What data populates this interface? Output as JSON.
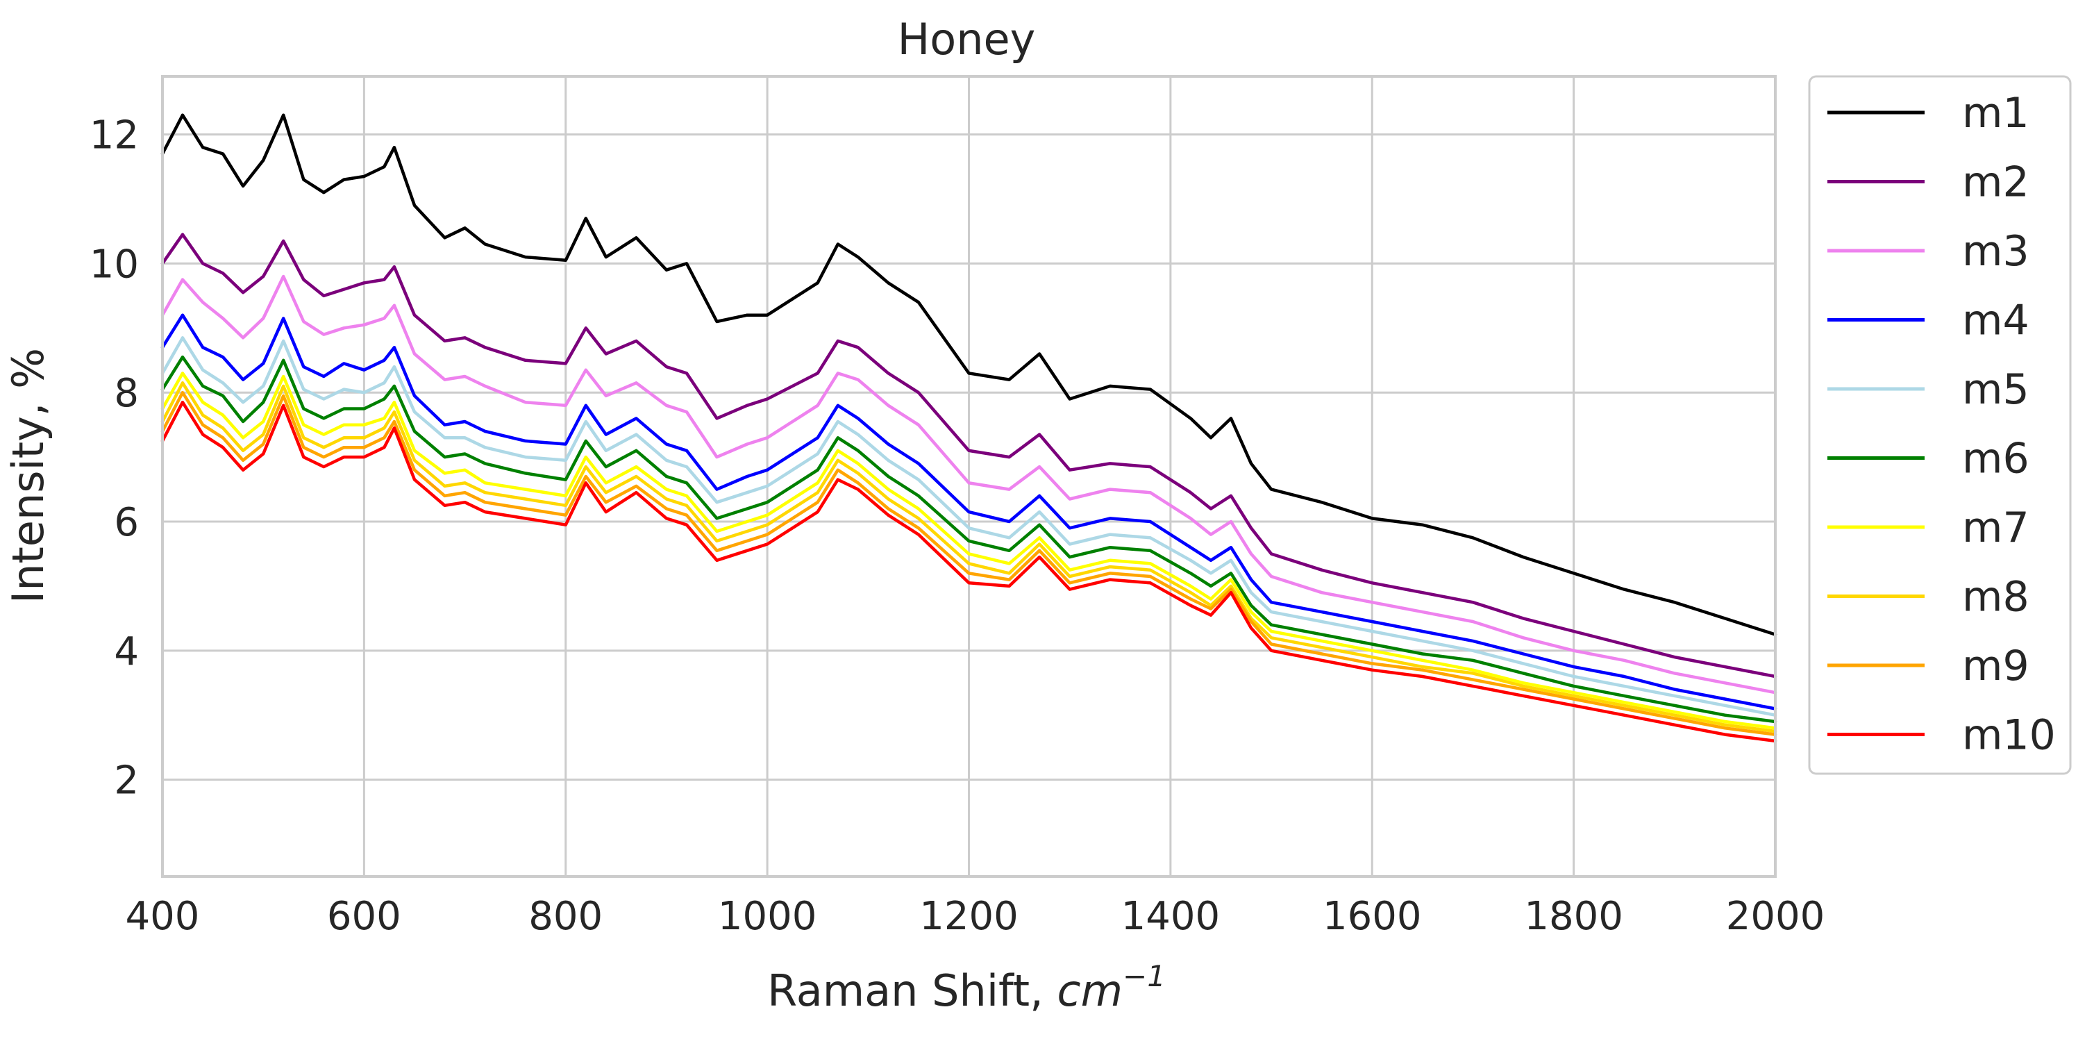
{
  "chart_data": {
    "type": "line",
    "title": "Honey",
    "xlabel": "Raman Shift, cm⁻¹",
    "xlabel_text": "Raman Shift, ",
    "xlabel_unit": "cm",
    "xlabel_exp": "−1",
    "ylabel": "Intensity, %",
    "xlim": [
      400,
      2000
    ],
    "ylim": [
      0.5,
      12.9
    ],
    "xticks": [
      400,
      600,
      800,
      1000,
      1200,
      1400,
      1600,
      1800,
      2000
    ],
    "yticks": [
      2,
      4,
      6,
      8,
      10,
      12
    ],
    "grid": true,
    "legend_position": "outside-right",
    "x": [
      400,
      420,
      440,
      460,
      480,
      500,
      520,
      540,
      560,
      580,
      600,
      620,
      630,
      650,
      680,
      700,
      720,
      760,
      800,
      820,
      840,
      870,
      900,
      920,
      950,
      980,
      1000,
      1050,
      1070,
      1090,
      1120,
      1150,
      1200,
      1240,
      1270,
      1300,
      1340,
      1380,
      1420,
      1440,
      1460,
      1480,
      1500,
      1550,
      1600,
      1650,
      1700,
      1750,
      1800,
      1850,
      1900,
      1950,
      2000
    ],
    "series": [
      {
        "name": "m1",
        "color": "#000000",
        "values": [
          11.7,
          12.3,
          11.8,
          11.7,
          11.2,
          11.6,
          12.3,
          11.3,
          11.1,
          11.3,
          11.35,
          11.5,
          11.8,
          10.9,
          10.4,
          10.55,
          10.3,
          10.1,
          10.05,
          10.7,
          10.1,
          10.4,
          9.9,
          10.0,
          9.1,
          9.2,
          9.2,
          9.7,
          10.3,
          10.1,
          9.7,
          9.4,
          8.3,
          8.2,
          8.6,
          7.9,
          8.1,
          8.05,
          7.6,
          7.3,
          7.6,
          6.9,
          6.5,
          6.3,
          6.05,
          5.95,
          5.75,
          5.45,
          5.2,
          4.95,
          4.75,
          4.5,
          4.25
        ]
      },
      {
        "name": "m2",
        "color": "#7b007b",
        "values": [
          10.0,
          10.45,
          10.0,
          9.85,
          9.55,
          9.8,
          10.35,
          9.75,
          9.5,
          9.6,
          9.7,
          9.75,
          9.95,
          9.2,
          8.8,
          8.85,
          8.7,
          8.5,
          8.45,
          9.0,
          8.6,
          8.8,
          8.4,
          8.3,
          7.6,
          7.8,
          7.9,
          8.3,
          8.8,
          8.7,
          8.3,
          8.0,
          7.1,
          7.0,
          7.35,
          6.8,
          6.9,
          6.85,
          6.45,
          6.2,
          6.4,
          5.9,
          5.5,
          5.25,
          5.05,
          4.9,
          4.75,
          4.5,
          4.3,
          4.1,
          3.9,
          3.75,
          3.6
        ]
      },
      {
        "name": "m3",
        "color": "#ee82ee",
        "values": [
          9.2,
          9.75,
          9.4,
          9.15,
          8.85,
          9.15,
          9.8,
          9.1,
          8.9,
          9.0,
          9.05,
          9.15,
          9.35,
          8.6,
          8.2,
          8.25,
          8.1,
          7.85,
          7.8,
          8.35,
          7.95,
          8.15,
          7.8,
          7.7,
          7.0,
          7.2,
          7.3,
          7.8,
          8.3,
          8.2,
          7.8,
          7.5,
          6.6,
          6.5,
          6.85,
          6.35,
          6.5,
          6.45,
          6.05,
          5.8,
          6.0,
          5.5,
          5.15,
          4.9,
          4.75,
          4.6,
          4.45,
          4.2,
          4.0,
          3.85,
          3.65,
          3.5,
          3.35
        ]
      },
      {
        "name": "m4",
        "color": "#0000ff",
        "values": [
          8.7,
          9.2,
          8.7,
          8.55,
          8.2,
          8.45,
          9.15,
          8.4,
          8.25,
          8.45,
          8.35,
          8.5,
          8.7,
          7.95,
          7.5,
          7.55,
          7.4,
          7.25,
          7.2,
          7.8,
          7.35,
          7.6,
          7.2,
          7.1,
          6.5,
          6.7,
          6.8,
          7.3,
          7.8,
          7.6,
          7.2,
          6.9,
          6.15,
          6.0,
          6.4,
          5.9,
          6.05,
          6.0,
          5.6,
          5.4,
          5.6,
          5.1,
          4.75,
          4.6,
          4.45,
          4.3,
          4.15,
          3.95,
          3.75,
          3.6,
          3.4,
          3.25,
          3.1
        ]
      },
      {
        "name": "m5",
        "color": "#add8e6",
        "values": [
          8.3,
          8.85,
          8.35,
          8.15,
          7.85,
          8.1,
          8.8,
          8.05,
          7.9,
          8.05,
          8.0,
          8.15,
          8.4,
          7.7,
          7.3,
          7.3,
          7.15,
          7.0,
          6.95,
          7.55,
          7.1,
          7.35,
          6.95,
          6.85,
          6.3,
          6.45,
          6.55,
          7.05,
          7.55,
          7.35,
          6.95,
          6.65,
          5.9,
          5.75,
          6.15,
          5.65,
          5.8,
          5.75,
          5.4,
          5.2,
          5.4,
          4.9,
          4.6,
          4.45,
          4.3,
          4.15,
          4.0,
          3.8,
          3.6,
          3.45,
          3.3,
          3.15,
          3.0
        ]
      },
      {
        "name": "m6",
        "color": "#008000",
        "values": [
          8.05,
          8.55,
          8.1,
          7.95,
          7.55,
          7.85,
          8.5,
          7.75,
          7.6,
          7.75,
          7.75,
          7.9,
          8.1,
          7.4,
          7.0,
          7.05,
          6.9,
          6.75,
          6.65,
          7.25,
          6.85,
          7.1,
          6.7,
          6.6,
          6.05,
          6.2,
          6.3,
          6.8,
          7.3,
          7.1,
          6.7,
          6.4,
          5.7,
          5.55,
          5.95,
          5.45,
          5.6,
          5.55,
          5.2,
          5.0,
          5.2,
          4.7,
          4.4,
          4.25,
          4.1,
          3.95,
          3.85,
          3.65,
          3.45,
          3.3,
          3.15,
          3.0,
          2.9
        ]
      },
      {
        "name": "m7",
        "color": "#ffff00",
        "values": [
          7.75,
          8.3,
          7.85,
          7.65,
          7.3,
          7.55,
          8.25,
          7.5,
          7.35,
          7.5,
          7.5,
          7.6,
          7.85,
          7.1,
          6.75,
          6.8,
          6.6,
          6.5,
          6.4,
          7.0,
          6.6,
          6.85,
          6.5,
          6.4,
          5.85,
          6.0,
          6.1,
          6.6,
          7.1,
          6.9,
          6.5,
          6.2,
          5.5,
          5.35,
          5.75,
          5.25,
          5.4,
          5.35,
          5.0,
          4.8,
          5.1,
          4.6,
          4.3,
          4.15,
          4.0,
          3.85,
          3.7,
          3.5,
          3.35,
          3.2,
          3.05,
          2.9,
          2.8
        ]
      },
      {
        "name": "m8",
        "color": "#ffd700",
        "values": [
          7.55,
          8.15,
          7.65,
          7.45,
          7.1,
          7.35,
          8.1,
          7.3,
          7.15,
          7.3,
          7.3,
          7.45,
          7.7,
          6.95,
          6.55,
          6.6,
          6.45,
          6.35,
          6.25,
          6.85,
          6.45,
          6.7,
          6.35,
          6.25,
          5.7,
          5.85,
          5.95,
          6.45,
          6.95,
          6.75,
          6.35,
          6.05,
          5.35,
          5.2,
          5.65,
          5.15,
          5.3,
          5.25,
          4.9,
          4.7,
          5.0,
          4.5,
          4.2,
          4.05,
          3.9,
          3.75,
          3.65,
          3.45,
          3.3,
          3.15,
          3.0,
          2.85,
          2.75
        ]
      },
      {
        "name": "m9",
        "color": "#ffa500",
        "values": [
          7.4,
          8.0,
          7.5,
          7.3,
          6.95,
          7.2,
          7.95,
          7.15,
          7.0,
          7.15,
          7.15,
          7.3,
          7.55,
          6.8,
          6.4,
          6.45,
          6.3,
          6.2,
          6.1,
          6.7,
          6.3,
          6.55,
          6.2,
          6.1,
          5.55,
          5.7,
          5.8,
          6.3,
          6.8,
          6.6,
          6.2,
          5.9,
          5.2,
          5.1,
          5.55,
          5.05,
          5.2,
          5.15,
          4.8,
          4.65,
          4.95,
          4.45,
          4.1,
          3.95,
          3.8,
          3.7,
          3.55,
          3.4,
          3.25,
          3.1,
          2.95,
          2.8,
          2.7
        ]
      },
      {
        "name": "m10",
        "color": "#ff0000",
        "values": [
          7.25,
          7.85,
          7.35,
          7.15,
          6.8,
          7.05,
          7.8,
          7.0,
          6.85,
          7.0,
          7.0,
          7.15,
          7.45,
          6.65,
          6.25,
          6.3,
          6.15,
          6.05,
          5.95,
          6.6,
          6.15,
          6.45,
          6.05,
          5.95,
          5.4,
          5.55,
          5.65,
          6.15,
          6.65,
          6.5,
          6.1,
          5.8,
          5.05,
          5.0,
          5.45,
          4.95,
          5.1,
          5.05,
          4.7,
          4.55,
          4.9,
          4.35,
          4.0,
          3.85,
          3.7,
          3.6,
          3.45,
          3.3,
          3.15,
          3.0,
          2.85,
          2.7,
          2.6
        ]
      }
    ]
  }
}
